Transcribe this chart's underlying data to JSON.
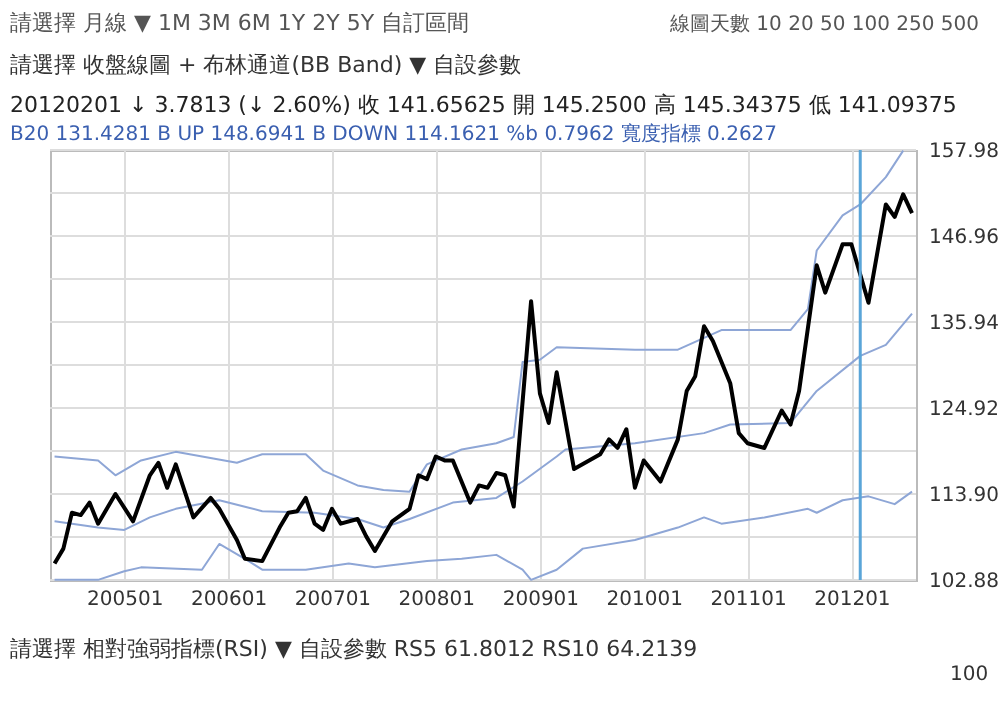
{
  "chart_data": {
    "type": "line",
    "annotations": [
      "請選擇   月線   ▼      1M   3M   6M   1Y   2Y   5Y   自訂區間",
      "線圖天數  10  20  50  100  250  500",
      "請選擇   收盤線圖 + 布林通道(BB Band)   ▼      自設參數",
      "20120201   ↓ 3.7813 (↓ 2.60%)    收 141.65625    開 145.2500    高 145.34375    低 141.09375",
      "B20 131.4281    B UP 148.6941    B DOWN 114.1621    %b 0.7962    寬度指標 0.2627",
      "請選擇   相對強弱指標(RSI)   ▼      自設參數     RS5 61.8012   RS10 64.2139",
      "100"
    ],
    "series": [
      {
        "color": "#8ea6d6",
        "x": [
          "2004-05",
          "2004-10",
          "2004-12",
          "2005-03",
          "2005-07",
          "2006-02",
          "2006-05",
          "2006-10",
          "2006-12",
          "2007-04",
          "2007-07",
          "2007-10",
          "2007-12",
          "2008-04",
          "2008-08",
          "2008-10",
          "2008-11",
          "2009-01",
          "2009-03",
          "2009-12",
          "2010-05",
          "2010-10",
          "2011-06",
          "2011-08",
          "2011-09",
          "2011-12",
          "2012-02",
          "2012-05",
          "2012-07"
        ],
        "values": [
          118.7,
          118.2,
          116.3,
          118.2,
          119.3,
          117.9,
          119.0,
          119.0,
          116.9,
          115.0,
          114.4,
          114.2,
          117.7,
          119.6,
          120.4,
          121.2,
          130.8,
          131.1,
          132.7,
          132.4,
          132.4,
          134.9,
          134.9,
          137.6,
          145.1,
          149.6,
          151.0,
          154.5,
          157.9
        ]
      },
      {
        "color": "#8ea6d6",
        "x": [
          "2004-05",
          "2004-10",
          "2005-01",
          "2005-04",
          "2005-07",
          "2005-12",
          "2006-05",
          "2006-11",
          "2007-04",
          "2007-07",
          "2007-10",
          "2008-03",
          "2008-08",
          "2008-11",
          "2009-03",
          "2009-04",
          "2009-12",
          "2010-08",
          "2010-11",
          "2011-06",
          "2011-09",
          "2012-02",
          "2012-05",
          "2012-08"
        ],
        "values": [
          110.4,
          109.6,
          109.3,
          110.9,
          112.0,
          113.1,
          111.7,
          111.5,
          110.7,
          109.6,
          110.7,
          112.8,
          113.4,
          115.5,
          118.7,
          119.6,
          120.4,
          121.7,
          122.8,
          123.0,
          127.1,
          131.6,
          133.0,
          137.0
        ]
      },
      {
        "color": "#8ea6d6",
        "x": [
          "2004-05",
          "2004-10",
          "2005-01",
          "2005-03",
          "2005-10",
          "2005-12",
          "2006-03",
          "2006-05",
          "2006-10",
          "2007-03",
          "2007-06",
          "2007-12",
          "2008-04",
          "2008-08",
          "2008-11",
          "2008-12",
          "2009-03",
          "2009-06",
          "2009-12",
          "2010-05",
          "2010-08",
          "2010-10",
          "2011-03",
          "2011-08",
          "2011-09",
          "2011-12",
          "2012-03",
          "2012-06",
          "2012-08"
        ],
        "values": [
          102.9,
          102.9,
          104.0,
          104.5,
          104.2,
          107.5,
          105.6,
          104.2,
          104.2,
          105.0,
          104.5,
          105.3,
          105.6,
          106.1,
          104.2,
          102.9,
          104.2,
          106.9,
          108.0,
          109.6,
          110.9,
          110.1,
          110.9,
          112.0,
          111.5,
          113.1,
          113.6,
          112.6,
          114.2
        ]
      },
      {
        "color": "#000000",
        "x": [
          "2004-05",
          "2004-06",
          "2004-07",
          "2004-08",
          "2004-09",
          "2004-10",
          "2004-12",
          "2005-02",
          "2005-04",
          "2005-05",
          "2005-06",
          "2005-07",
          "2005-09",
          "2005-11",
          "2005-12",
          "2006-02",
          "2006-03",
          "2006-05",
          "2006-07",
          "2006-08",
          "2006-09",
          "2006-10",
          "2006-11",
          "2006-12",
          "2007-01",
          "2007-02",
          "2007-04",
          "2007-05",
          "2007-06",
          "2007-08",
          "2007-10",
          "2007-11",
          "2007-12",
          "2008-01",
          "2008-02",
          "2008-03",
          "2008-05",
          "2008-06",
          "2008-07",
          "2008-08",
          "2008-09",
          "2008-10",
          "2008-12",
          "2009-01",
          "2009-02",
          "2009-03",
          "2009-05",
          "2009-08",
          "2009-09",
          "2009-10",
          "2009-11",
          "2009-12",
          "2010-01",
          "2010-03",
          "2010-05",
          "2010-06",
          "2010-07",
          "2010-08",
          "2010-09",
          "2010-11",
          "2010-12",
          "2011-01",
          "2011-03",
          "2011-05",
          "2011-06",
          "2011-07",
          "2011-09",
          "2011-10",
          "2011-12",
          "2012-01",
          "2012-03",
          "2012-05",
          "2012-06",
          "2012-07",
          "2012-08"
        ],
        "values": [
          105.0,
          106.9,
          111.5,
          111.2,
          112.8,
          110.1,
          113.9,
          110.4,
          116.3,
          117.9,
          114.7,
          117.7,
          110.9,
          113.4,
          112.0,
          108.0,
          105.6,
          105.3,
          109.6,
          111.5,
          111.7,
          113.4,
          110.1,
          109.3,
          112.0,
          110.1,
          110.7,
          108.5,
          106.6,
          110.4,
          112.0,
          116.3,
          115.8,
          118.7,
          118.2,
          118.2,
          112.8,
          115.0,
          114.7,
          116.6,
          116.3,
          112.3,
          138.6,
          126.8,
          123.0,
          129.5,
          117.1,
          119.0,
          120.9,
          119.8,
          122.2,
          114.7,
          118.2,
          115.5,
          120.9,
          127.1,
          129.0,
          135.4,
          133.5,
          128.1,
          121.7,
          120.4,
          119.8,
          124.6,
          122.8,
          127.1,
          143.2,
          139.7,
          145.9,
          145.9,
          138.4,
          151.0,
          149.4,
          152.3,
          149.9
        ]
      }
    ],
    "xlim": [
      "2004-04-15",
      "2012-08-15"
    ],
    "xticks": [
      {
        "value": "2005-01",
        "label": "200501"
      },
      {
        "value": "2006-01",
        "label": "200601"
      },
      {
        "value": "2007-01",
        "label": "200701"
      },
      {
        "value": "2008-01",
        "label": "200801"
      },
      {
        "value": "2009-01",
        "label": "200901"
      },
      {
        "value": "2010-01",
        "label": "201001"
      },
      {
        "value": "2011-01",
        "label": "201101"
      },
      {
        "value": "2012-01",
        "label": "201201"
      }
    ],
    "ylim": [
      102.88,
      157.98
    ],
    "yticks": [
      102.88,
      {
        "value": 108.39,
        "label": null
      },
      {
        "value": 113.9,
        "label": "113.90"
      },
      {
        "value": 119.41,
        "label": null
      },
      124.92,
      {
        "value": 130.43,
        "label": null
      },
      135.94,
      {
        "value": 141.45,
        "label": null
      },
      146.96,
      {
        "value": 152.47,
        "label": null
      },
      157.98
    ],
    "ref_lines": [
      {
        "axis": "x",
        "value": "2012-02",
        "color": "#5aa5d8"
      }
    ],
    "grid": true,
    "marker": "none",
    "line_style": "solid"
  }
}
